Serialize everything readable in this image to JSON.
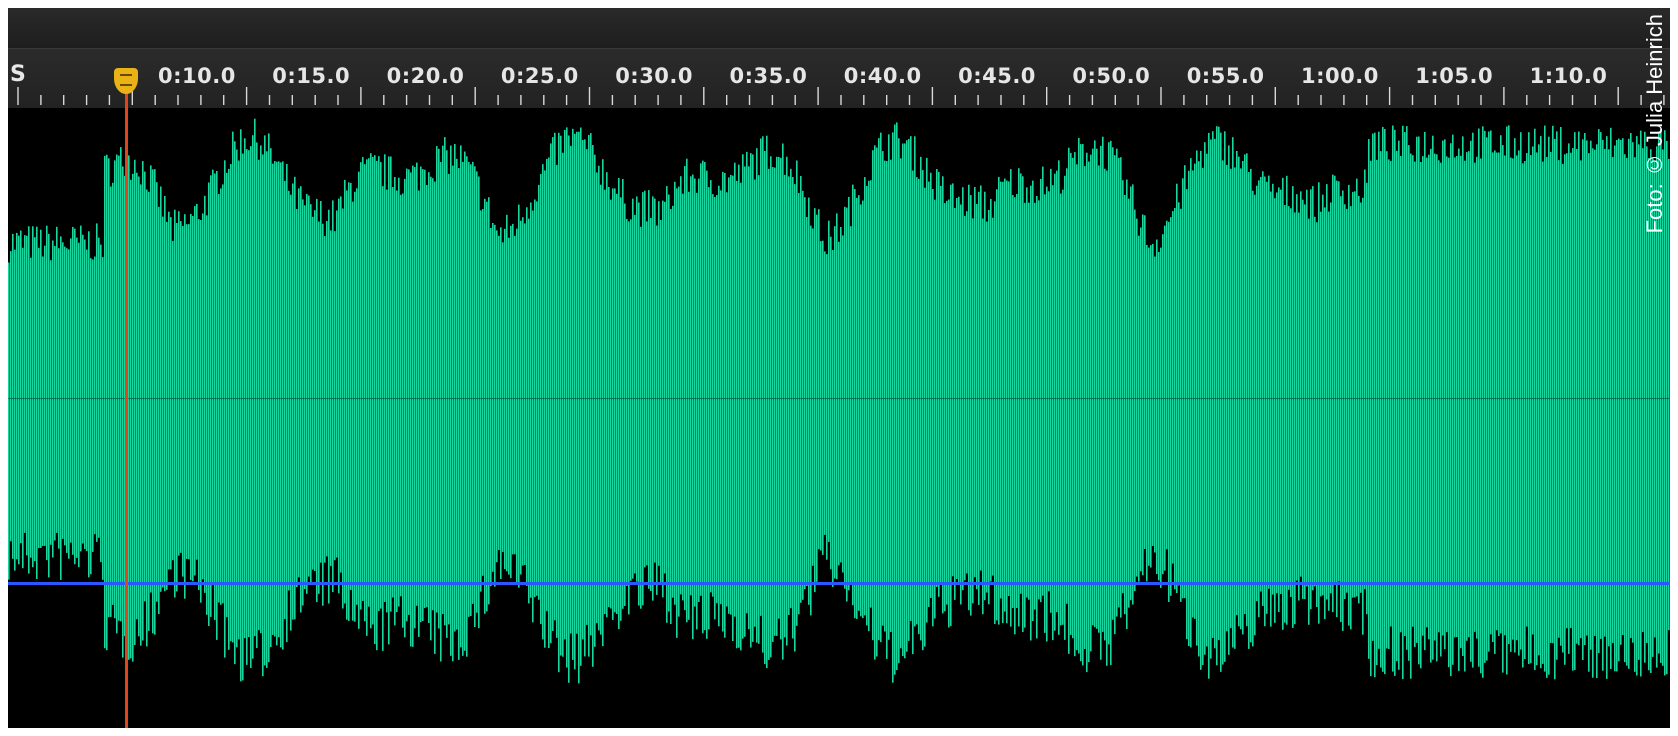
{
  "ruler": {
    "unit_label": "S",
    "time_labels": [
      "0:10.0",
      "0:15.0",
      "0:20.0",
      "0:25.0",
      "0:30.0",
      "0:35.0",
      "0:40.0",
      "0:45.0",
      "0:50.0",
      "0:55.0",
      "1:00.0",
      "1:05.0",
      "1:10.0"
    ]
  },
  "waveform": {
    "color": "#16d7a0",
    "volume_line_color": "#2a57ff",
    "playhead_color": "#e0461b",
    "playhead_handle_color": "#e9b318"
  },
  "credit": "Foto: © Julia Heinrich"
}
